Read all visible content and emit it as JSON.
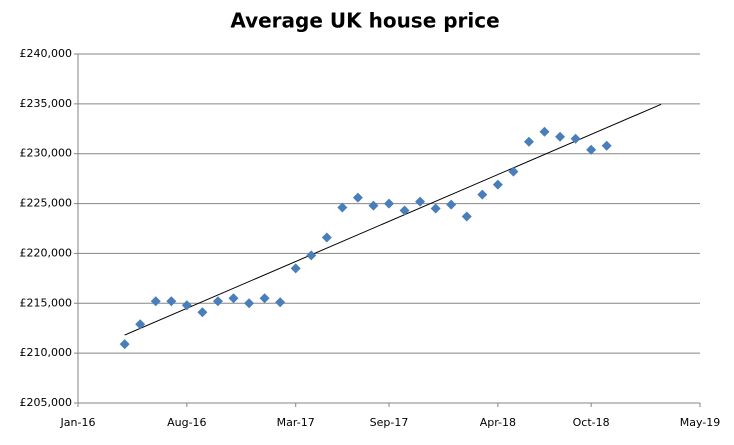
{
  "chart_data": {
    "type": "scatter",
    "title": "Average UK house price",
    "x": [
      "2016-04",
      "2016-05",
      "2016-06",
      "2016-07",
      "2016-08",
      "2016-09",
      "2016-10",
      "2016-11",
      "2016-12",
      "2017-01",
      "2017-02",
      "2017-03",
      "2017-04",
      "2017-05",
      "2017-06",
      "2017-07",
      "2017-08",
      "2017-09",
      "2017-10",
      "2017-11",
      "2017-12",
      "2018-01",
      "2018-02",
      "2018-03",
      "2018-04",
      "2018-05",
      "2018-06",
      "2018-07",
      "2018-08",
      "2018-09",
      "2018-10",
      "2018-11"
    ],
    "values": [
      210900,
      212900,
      215200,
      215200,
      214800,
      214100,
      215200,
      215500,
      215000,
      215500,
      215100,
      218500,
      219800,
      221600,
      224600,
      225600,
      224800,
      225000,
      224300,
      225200,
      224500,
      224900,
      223700,
      225900,
      226900,
      228200,
      231200,
      232200,
      231700,
      231500,
      230400,
      230800
    ],
    "color": "#4a7ebb",
    "trendline": "linear",
    "trendline_color": "#000000",
    "xlim": [
      "2016-01",
      "2019-05"
    ],
    "xticks": [
      {
        "value": "2016-01",
        "label": "Jan-16"
      },
      {
        "value": "2016-08",
        "label": "Aug-16"
      },
      {
        "value": "2017-03",
        "label": "Mar-17"
      },
      {
        "value": "2017-09",
        "label": "Sep-17"
      },
      {
        "value": "2018-04",
        "label": "Apr-18"
      },
      {
        "value": "2018-10",
        "label": "Oct-18"
      },
      {
        "value": "2019-05",
        "label": "May-19"
      }
    ],
    "ylim": [
      205000,
      240000
    ],
    "yticks": [
      {
        "value": 205000,
        "label": "£205,000"
      },
      {
        "value": 210000,
        "label": "£210,000"
      },
      {
        "value": 215000,
        "label": "£215,000"
      },
      {
        "value": 220000,
        "label": "£220,000"
      },
      {
        "value": 225000,
        "label": "£225,000"
      },
      {
        "value": 230000,
        "label": "£230,000"
      },
      {
        "value": 235000,
        "label": "£235,000"
      },
      {
        "value": 240000,
        "label": "£240,000"
      }
    ],
    "grid": true
  }
}
